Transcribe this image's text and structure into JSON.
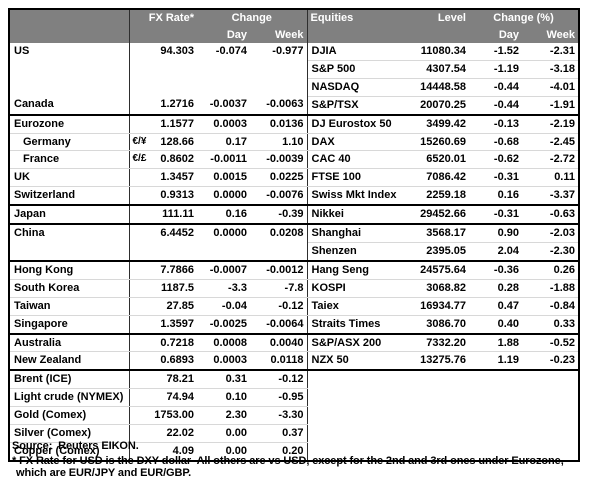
{
  "table": {
    "header": {
      "fx_rate": "FX Rate*",
      "change": "Change",
      "day": "Day",
      "week": "Week",
      "equities": "Equities",
      "level": "Level",
      "change_pct": "Change (%)"
    },
    "rows": [
      {
        "label": "US",
        "pair": "",
        "fx": "94.303",
        "day": "-0.074",
        "week": "-0.977",
        "eq": "DJIA",
        "level": "11080.34",
        "eday": "-1.52",
        "eweek": "-2.31",
        "indent": false,
        "lb": "none",
        "rb": "light"
      },
      {
        "label": "",
        "pair": "",
        "fx": "",
        "day": "",
        "week": "",
        "eq": "S&P 500",
        "level": "4307.54",
        "eday": "-1.19",
        "eweek": "-3.18",
        "indent": false,
        "lb": "none",
        "rb": "light"
      },
      {
        "label": "",
        "pair": "",
        "fx": "",
        "day": "",
        "week": "",
        "eq": "NASDAQ",
        "level": "14448.58",
        "eday": "-0.44",
        "eweek": "-4.01",
        "indent": false,
        "lb": "none",
        "rb": "light"
      },
      {
        "label": "Canada",
        "pair": "",
        "fx": "1.2716",
        "day": "-0.0037",
        "week": "-0.0063",
        "eq": "S&P/TSX",
        "level": "20070.25",
        "eday": "-0.44",
        "eweek": "-1.91",
        "indent": false,
        "lb": "dark",
        "rb": "dark"
      },
      {
        "label": "Eurozone",
        "pair": "",
        "fx": "1.1577",
        "day": "0.0003",
        "week": "0.0136",
        "eq": "DJ Eurostox 50",
        "level": "3499.42",
        "eday": "-0.13",
        "eweek": "-2.19",
        "indent": false,
        "lb": "light",
        "rb": "light"
      },
      {
        "label": "Germany",
        "pair": "€/¥",
        "fx": "128.66",
        "day": "0.17",
        "week": "1.10",
        "eq": "DAX",
        "level": "15260.69",
        "eday": "-0.68",
        "eweek": "-2.45",
        "indent": true,
        "lb": "light",
        "rb": "light"
      },
      {
        "label": "France",
        "pair": "€/£",
        "fx": "0.8602",
        "day": "-0.0011",
        "week": "-0.0039",
        "eq": "CAC 40",
        "level": "6520.01",
        "eday": "-0.62",
        "eweek": "-2.72",
        "indent": true,
        "lb": "light",
        "rb": "light"
      },
      {
        "label": "UK",
        "pair": "",
        "fx": "1.3457",
        "day": "0.0015",
        "week": "0.0225",
        "eq": "FTSE 100",
        "level": "7086.42",
        "eday": "-0.31",
        "eweek": "0.11",
        "indent": false,
        "lb": "light",
        "rb": "light"
      },
      {
        "label": "Switzerland",
        "pair": "",
        "fx": "0.9313",
        "day": "0.0000",
        "week": "-0.0076",
        "eq": "Swiss Mkt Index",
        "level": "2259.18",
        "eday": "0.16",
        "eweek": "-3.37",
        "indent": false,
        "lb": "dark",
        "rb": "dark"
      },
      {
        "label": "Japan",
        "pair": "",
        "fx": "111.11",
        "day": "0.16",
        "week": "-0.39",
        "eq": "Nikkei",
        "level": "29452.66",
        "eday": "-0.31",
        "eweek": "-0.63",
        "indent": false,
        "lb": "dark",
        "rb": "dark"
      },
      {
        "label": "China",
        "pair": "",
        "fx": "6.4452",
        "day": "0.0000",
        "week": "0.0208",
        "eq": "Shanghai",
        "level": "3568.17",
        "eday": "0.90",
        "eweek": "-2.03",
        "indent": false,
        "lb": "none",
        "rb": "light"
      },
      {
        "label": "",
        "pair": "",
        "fx": "",
        "day": "",
        "week": "",
        "eq": "Shenzen",
        "level": "2395.05",
        "eday": "2.04",
        "eweek": "-2.30",
        "indent": false,
        "lb": "dark",
        "rb": "dark"
      },
      {
        "label": "Hong Kong",
        "pair": "",
        "fx": "7.7866",
        "day": "-0.0007",
        "week": "-0.0012",
        "eq": "Hang Seng",
        "level": "24575.64",
        "eday": "-0.36",
        "eweek": "0.26",
        "indent": false,
        "lb": "light",
        "rb": "light"
      },
      {
        "label": "South Korea",
        "pair": "",
        "fx": "1187.5",
        "day": "-3.3",
        "week": "-7.8",
        "eq": "KOSPI",
        "level": "3068.82",
        "eday": "0.28",
        "eweek": "-1.88",
        "indent": false,
        "lb": "light",
        "rb": "light"
      },
      {
        "label": "Taiwan",
        "pair": "",
        "fx": "27.85",
        "day": "-0.04",
        "week": "-0.12",
        "eq": "Taiex",
        "level": "16934.77",
        "eday": "0.47",
        "eweek": "-0.84",
        "indent": false,
        "lb": "light",
        "rb": "light"
      },
      {
        "label": "Singapore",
        "pair": "",
        "fx": "1.3597",
        "day": "-0.0025",
        "week": "-0.0064",
        "eq": "Straits Times",
        "level": "3086.70",
        "eday": "0.40",
        "eweek": "0.33",
        "indent": false,
        "lb": "dark",
        "rb": "dark"
      },
      {
        "label": "Australia",
        "pair": "",
        "fx": "0.7218",
        "day": "0.0008",
        "week": "0.0040",
        "eq": "S&P/ASX 200",
        "level": "7332.20",
        "eday": "1.88",
        "eweek": "-0.52",
        "indent": false,
        "lb": "light",
        "rb": "light"
      },
      {
        "label": "New Zealand",
        "pair": "",
        "fx": "0.6893",
        "day": "0.0003",
        "week": "0.0118",
        "eq": "NZX 50",
        "level": "13275.76",
        "eday": "1.19",
        "eweek": "-0.23",
        "indent": false,
        "lb": "dark",
        "rb": "dark"
      },
      {
        "label": "Brent (ICE)",
        "pair": "",
        "fx": "78.21",
        "day": "0.31",
        "week": "-0.12",
        "eq": "",
        "level": "",
        "eday": "",
        "eweek": "",
        "indent": false,
        "lb": "light",
        "rb": "none"
      },
      {
        "label": "Light crude (NYMEX)",
        "pair": "",
        "fx": "74.94",
        "day": "0.10",
        "week": "-0.95",
        "eq": "",
        "level": "",
        "eday": "",
        "eweek": "",
        "indent": false,
        "lb": "light",
        "rb": "none"
      },
      {
        "label": "Gold (Comex)",
        "pair": "",
        "fx": "1753.00",
        "day": "2.30",
        "week": "-3.30",
        "eq": "",
        "level": "",
        "eday": "",
        "eweek": "",
        "indent": false,
        "lb": "light",
        "rb": "none"
      },
      {
        "label": "Silver (Comex)",
        "pair": "",
        "fx": "22.02",
        "day": "0.00",
        "week": "0.37",
        "eq": "",
        "level": "",
        "eday": "",
        "eweek": "",
        "indent": false,
        "lb": "light",
        "rb": "none"
      },
      {
        "label": "Copper (Comex)",
        "pair": "",
        "fx": "4.09",
        "day": "0.00",
        "week": "0.20",
        "eq": "",
        "level": "",
        "eday": "",
        "eweek": "",
        "indent": false,
        "lb": "none",
        "rb": "none"
      }
    ]
  },
  "footer": {
    "source": "Source:  Reuters EIKON.",
    "note1": "* FX Rate for USD is the DXY dollar  All others are vs USD, except for the 2nd and 3rd ones under Eurozone,",
    "note2": "which are EUR/JPY and EUR/GBP."
  },
  "colors": {
    "header_bg": "#808080",
    "header_text": "#ffffff",
    "group_border": "#000000",
    "row_line": "#d8d8d8"
  }
}
